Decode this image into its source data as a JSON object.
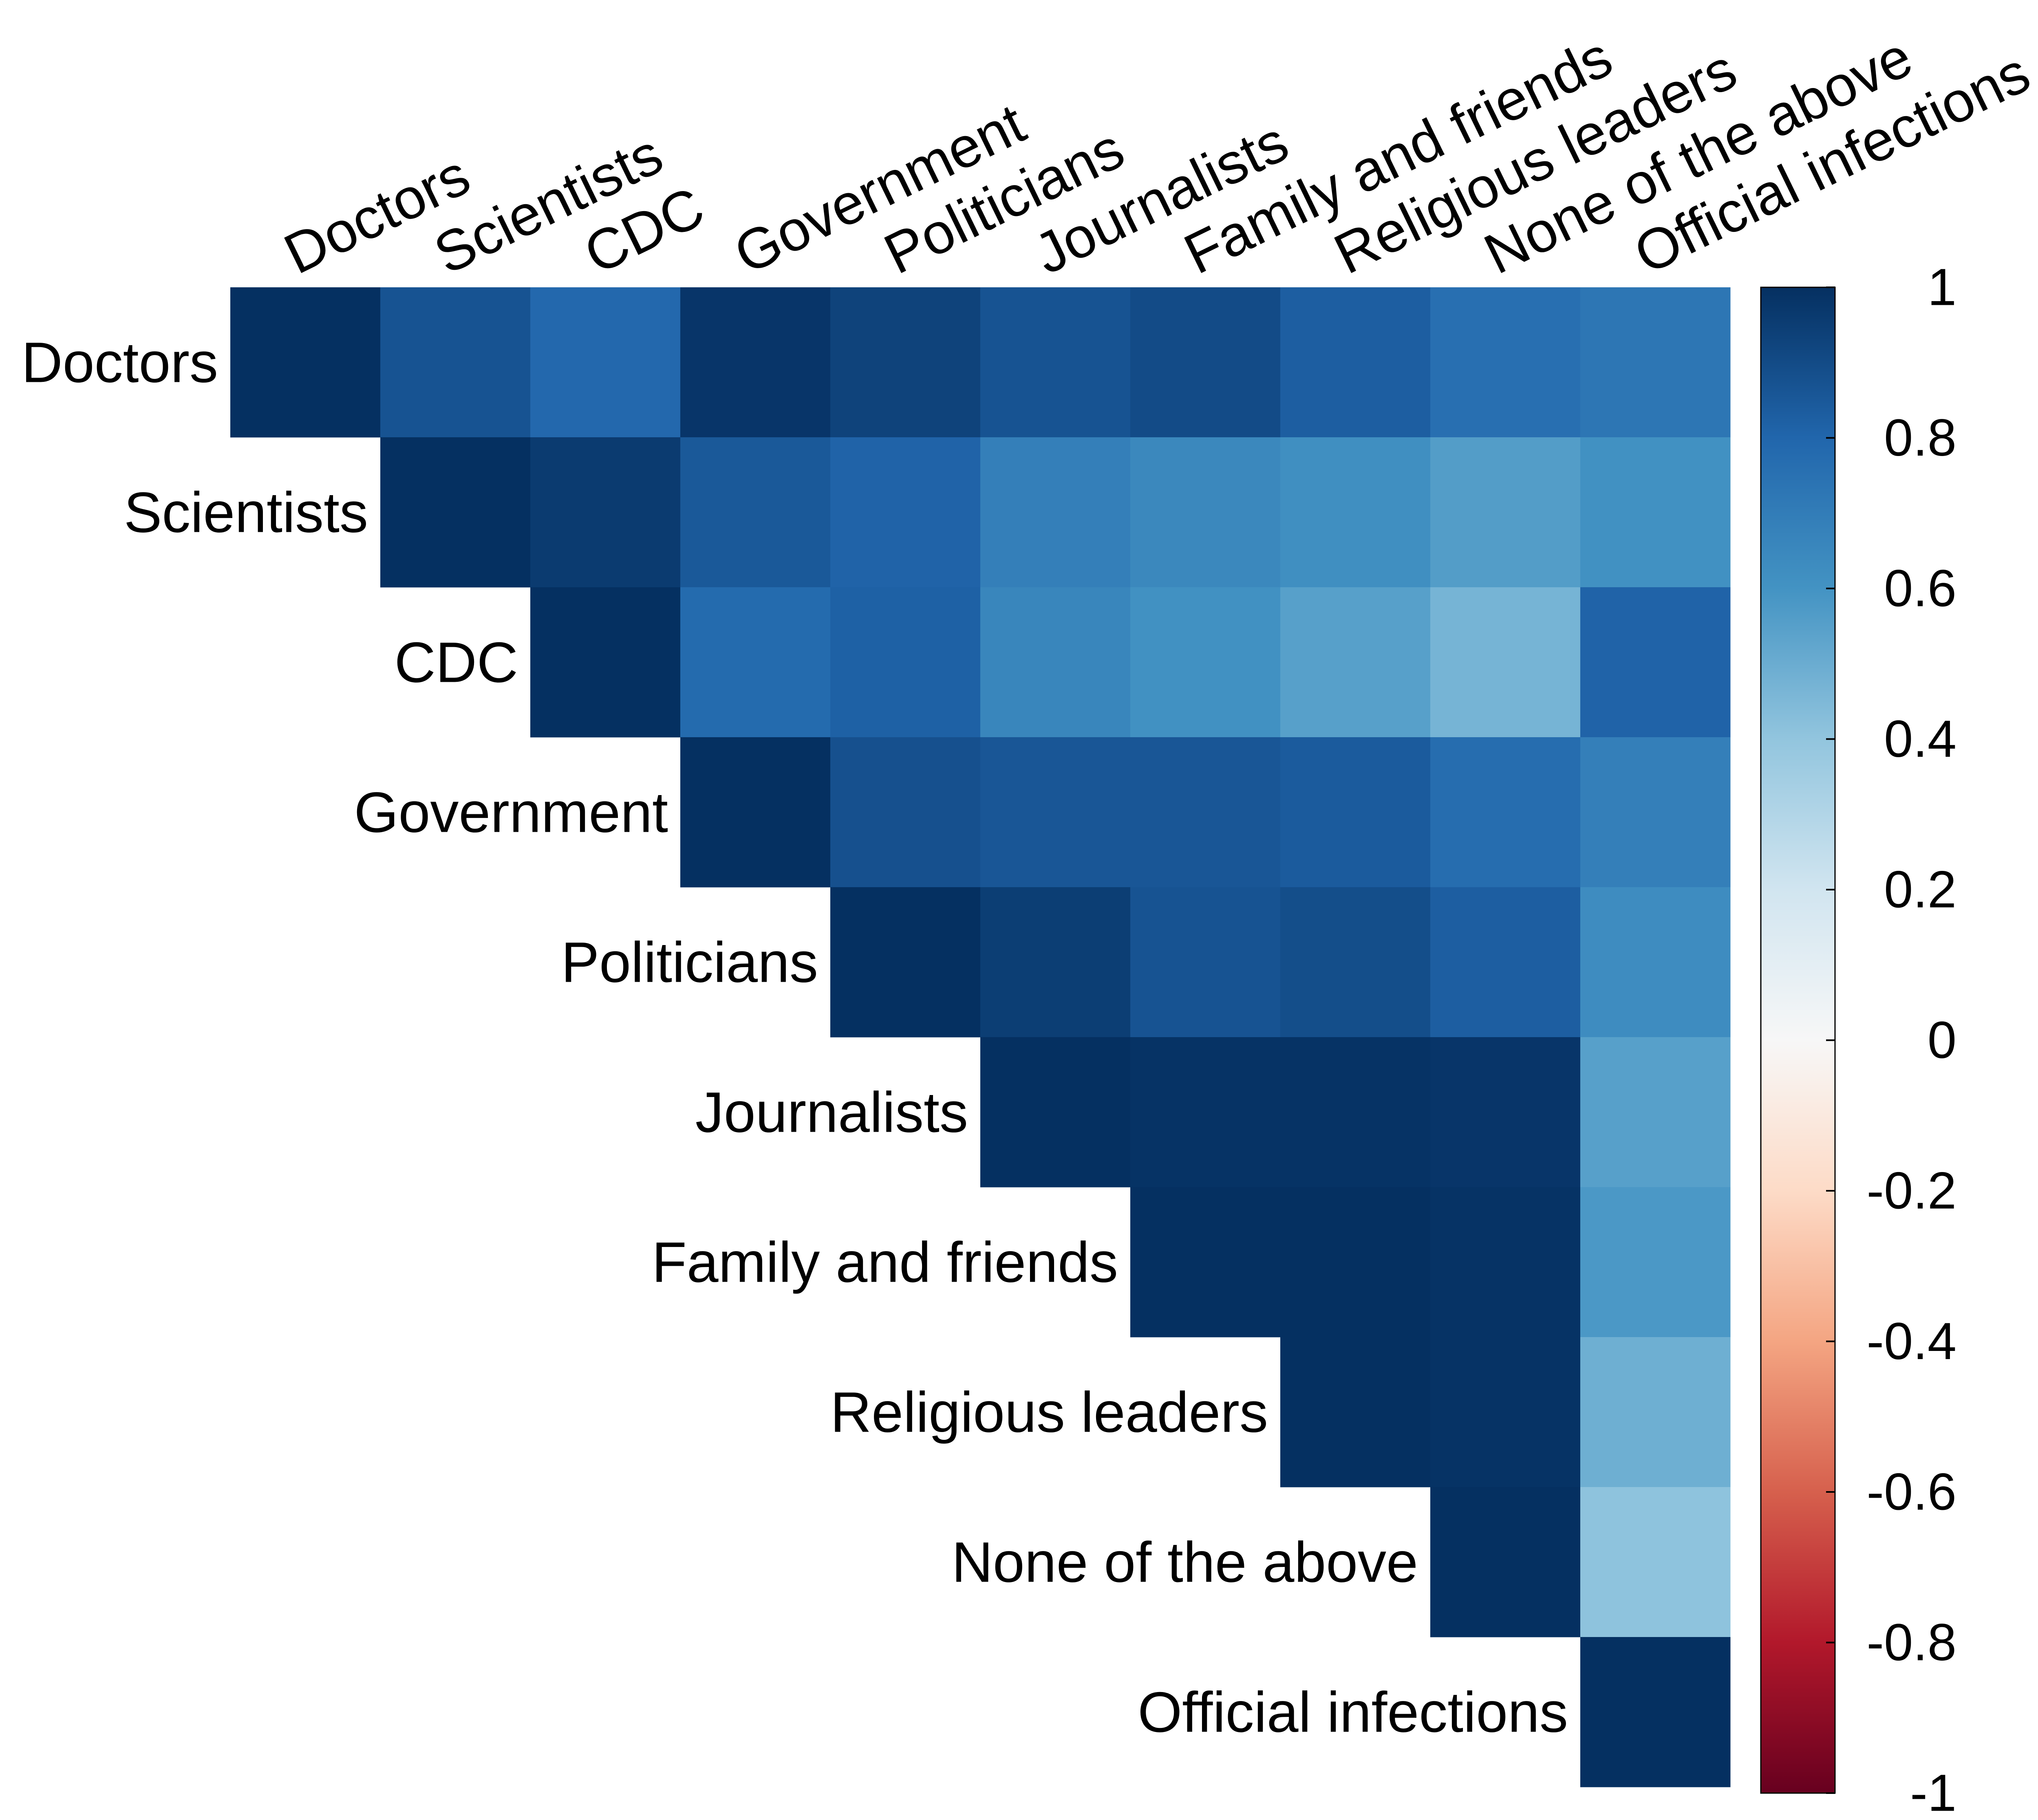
{
  "chart_data": {
    "type": "heatmap",
    "title": "",
    "subtitle": "",
    "layout": "upper-triangle",
    "labels": [
      "Doctors",
      "Scientists",
      "CDC",
      "Government",
      "Politicians",
      "Journalists",
      "Family and friends",
      "Religious leaders",
      "None of the above",
      "Official infections"
    ],
    "values": [
      [
        1.0,
        0.87,
        0.79,
        0.98,
        0.93,
        0.87,
        0.9,
        0.83,
        0.76,
        0.73
      ],
      [
        null,
        1.0,
        0.96,
        0.85,
        0.81,
        0.69,
        0.65,
        0.62,
        0.56,
        0.61
      ],
      [
        null,
        null,
        1.0,
        0.78,
        0.82,
        0.66,
        0.61,
        0.55,
        0.47,
        0.81
      ],
      [
        null,
        null,
        null,
        1.0,
        0.88,
        0.86,
        0.86,
        0.84,
        0.77,
        0.69
      ],
      [
        null,
        null,
        null,
        null,
        1.0,
        0.95,
        0.87,
        0.89,
        0.83,
        0.63
      ],
      [
        null,
        null,
        null,
        null,
        null,
        1.0,
        0.99,
        0.99,
        0.98,
        0.55
      ],
      [
        null,
        null,
        null,
        null,
        null,
        null,
        1.0,
        1.0,
        0.99,
        0.58
      ],
      [
        null,
        null,
        null,
        null,
        null,
        null,
        null,
        1.0,
        0.99,
        0.49
      ],
      [
        null,
        null,
        null,
        null,
        null,
        null,
        null,
        null,
        1.0,
        0.41
      ],
      [
        null,
        null,
        null,
        null,
        null,
        null,
        null,
        null,
        null,
        1.0
      ]
    ],
    "colorbar": {
      "range": [
        -1,
        1
      ],
      "ticks": [
        1,
        0.8,
        0.6,
        0.4,
        0.2,
        0,
        -0.2,
        -0.4,
        -0.6,
        -0.8,
        -1
      ],
      "tick_labels": [
        "1",
        "0.8",
        "0.6",
        "0.4",
        "0.2",
        "0",
        "-0.2",
        "-0.4",
        "-0.6",
        "-0.8",
        "-1"
      ],
      "colormap": "RdBu",
      "color_stops": [
        {
          "v": -1.0,
          "color": "#67001f"
        },
        {
          "v": -0.8,
          "color": "#b2182b"
        },
        {
          "v": -0.6,
          "color": "#d6604d"
        },
        {
          "v": -0.4,
          "color": "#f4a582"
        },
        {
          "v": -0.2,
          "color": "#fddbc7"
        },
        {
          "v": 0.0,
          "color": "#f7f7f7"
        },
        {
          "v": 0.2,
          "color": "#d1e5f0"
        },
        {
          "v": 0.4,
          "color": "#92c5de"
        },
        {
          "v": 0.6,
          "color": "#4393c3"
        },
        {
          "v": 0.8,
          "color": "#2166ac"
        },
        {
          "v": 1.0,
          "color": "#053061"
        }
      ]
    },
    "legend": "right",
    "grid": false
  }
}
